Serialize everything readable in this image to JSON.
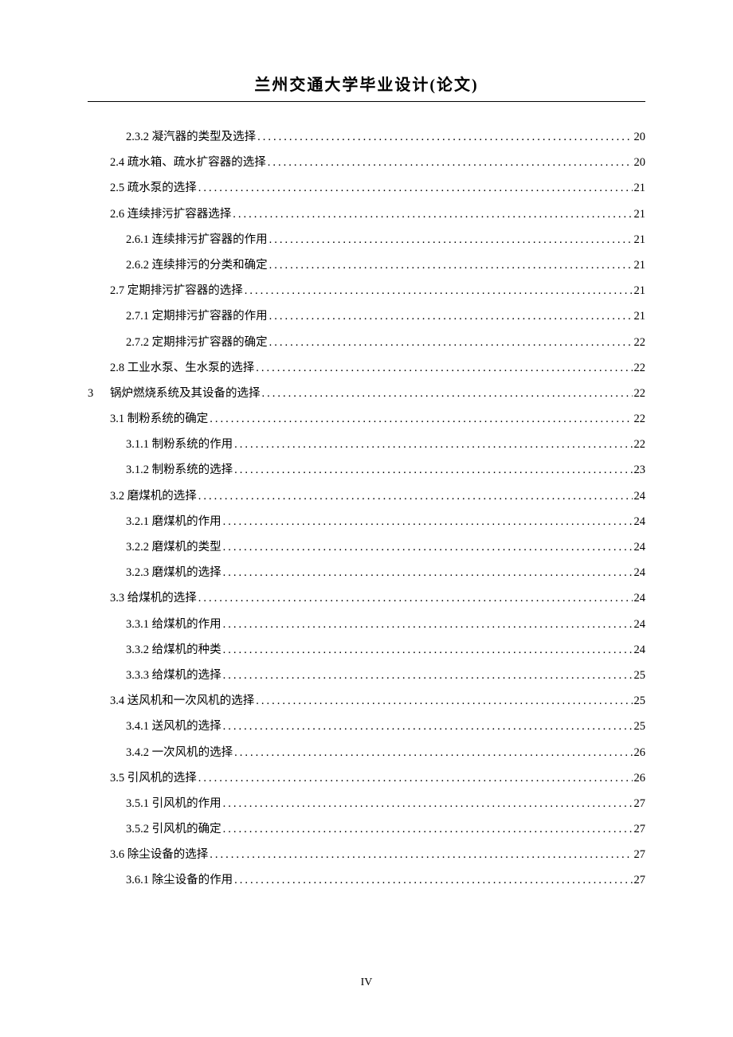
{
  "header": {
    "title": "兰州交通大学毕业设计(论文)"
  },
  "page_number": "IV",
  "toc": [
    {
      "indent": 3,
      "label": "2.3.2 凝汽器的类型及选择",
      "page": "20"
    },
    {
      "indent": 2,
      "label": "2.4 疏水箱、疏水扩容器的选择",
      "page": "20"
    },
    {
      "indent": 2,
      "label": "2.5 疏水泵的选择 ",
      "page": "21"
    },
    {
      "indent": 2,
      "label": "2.6 连续排污扩容器选择 ",
      "page": "21"
    },
    {
      "indent": 3,
      "label": "2.6.1 连续排污扩容器的作用",
      "page": "21"
    },
    {
      "indent": 3,
      "label": "2.6.2 连续排污的分类和确定",
      "page": "21"
    },
    {
      "indent": 2,
      "label": "2.7 定期排污扩容器的选择 ",
      "page": "21"
    },
    {
      "indent": 3,
      "label": "2.7.1 定期排污扩容器的作用",
      "page": "21"
    },
    {
      "indent": 3,
      "label": "2.7.2 定期排污扩容器的确定",
      "page": "22"
    },
    {
      "indent": 2,
      "label": "2.8 工业水泵、生水泵的选择",
      "page": "22"
    },
    {
      "indent": 1,
      "chapter_num": "3",
      "label": "锅炉燃烧系统及其设备的选择",
      "page": "22"
    },
    {
      "indent": 2,
      "label": "3.1 制粉系统的确定 ",
      "page": "22"
    },
    {
      "indent": 3,
      "label": "3.1.1 制粉系统的作用 ",
      "page": "22"
    },
    {
      "indent": 3,
      "label": "3.1.2 制粉系统的选择 ",
      "page": "23"
    },
    {
      "indent": 2,
      "label": "3.2 磨煤机的选择 ",
      "page": "24"
    },
    {
      "indent": 3,
      "label": "3.2.1 磨煤机的作用",
      "page": "24"
    },
    {
      "indent": 3,
      "label": "3.2.2 磨煤机的类型",
      "page": "24"
    },
    {
      "indent": 3,
      "label": "3.2.3 磨煤机的选择",
      "page": "24"
    },
    {
      "indent": 2,
      "label": "3.3 给煤机的选择 ",
      "page": "24"
    },
    {
      "indent": 3,
      "label": "3.3.1 给煤机的作用",
      "page": "24"
    },
    {
      "indent": 3,
      "label": "3.3.2 给煤机的种类",
      "page": "24"
    },
    {
      "indent": 3,
      "label": "3.3.3 给煤机的选择",
      "page": "25"
    },
    {
      "indent": 2,
      "label": "3.4 送风机和一次风机的选择",
      "page": "25"
    },
    {
      "indent": 3,
      "label": "3.4.1 送风机的选择",
      "page": "25"
    },
    {
      "indent": 3,
      "label": "3.4.2  一次风机的选择",
      "page": "26"
    },
    {
      "indent": 2,
      "label": "3.5  引风机的选择",
      "page": "26"
    },
    {
      "indent": 3,
      "label": "3.5.1 引风机的作用",
      "page": "27"
    },
    {
      "indent": 3,
      "label": "3.5.2 引风机的确定",
      "page": "27"
    },
    {
      "indent": 2,
      "label": "3.6 除尘设备的选择 ",
      "page": "27"
    },
    {
      "indent": 3,
      "label": "3.6.1  除尘设备的作用",
      "page": "27"
    }
  ]
}
